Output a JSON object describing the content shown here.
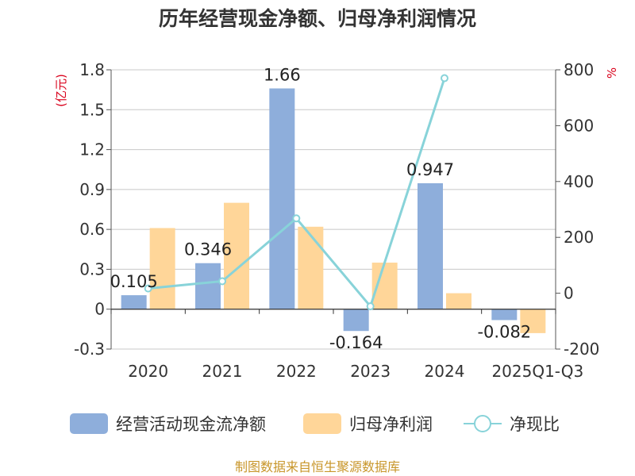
{
  "chart_data": {
    "type": "bar+line",
    "title": "历年经营现金净额、归母净利润情况",
    "categories": [
      "2020",
      "2021",
      "2022",
      "2023",
      "2024",
      "2025Q1-Q3"
    ],
    "series": [
      {
        "name": "经营活动现金流净额",
        "type": "bar",
        "axis": "left",
        "color": "#8eaedb",
        "values": [
          0.105,
          0.346,
          1.66,
          -0.164,
          0.947,
          -0.082
        ],
        "labels": [
          "0.105",
          "0.346",
          "1.66",
          "-0.164",
          "0.947",
          "-0.082"
        ]
      },
      {
        "name": "归母净利润",
        "type": "bar",
        "axis": "left",
        "color": "#ffd699",
        "values": [
          0.61,
          0.8,
          0.62,
          0.35,
          0.12,
          -0.18
        ]
      },
      {
        "name": "净现比",
        "type": "line",
        "axis": "right",
        "color": "#88d3d9",
        "values": [
          17,
          43,
          268,
          -47,
          770,
          null
        ]
      }
    ],
    "left_axis": {
      "unit": "(亿元)",
      "ylim": [
        -0.3,
        1.8
      ],
      "ticks": [
        -0.3,
        0,
        0.3,
        0.6,
        0.9,
        1.2,
        1.5,
        1.8
      ],
      "tick_labels": [
        "-0.3",
        "0",
        "0.3",
        "0.6",
        "0.9",
        "1.2",
        "1.5",
        "1.8"
      ]
    },
    "right_axis": {
      "unit": "%",
      "ylim": [
        -200,
        800
      ],
      "ticks": [
        -200,
        0,
        200,
        400,
        600,
        800
      ],
      "tick_labels": [
        "-200",
        "0",
        "200",
        "400",
        "600",
        "800"
      ]
    },
    "legend_position": "bottom"
  },
  "source": "制图数据来自恒生聚源数据库"
}
